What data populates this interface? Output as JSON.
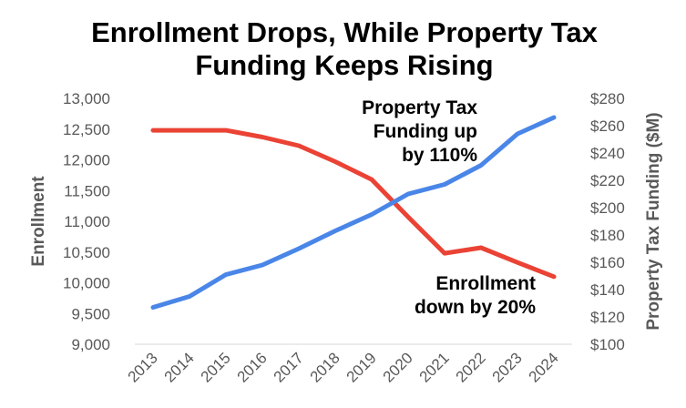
{
  "chart_data": {
    "type": "line",
    "title_lines": [
      "Enrollment Drops, While Property Tax",
      "Funding Keeps Rising"
    ],
    "categories": [
      "2013",
      "2014",
      "2015",
      "2016",
      "2017",
      "2018",
      "2019",
      "2020",
      "2021",
      "2022",
      "2023",
      "2024"
    ],
    "y_left": {
      "label": "Enrollment",
      "range": [
        9000,
        13000
      ],
      "ticks": [
        "9,000",
        "9,500",
        "10,000",
        "10,500",
        "11,000",
        "11,500",
        "12,000",
        "12,500",
        "13,000"
      ]
    },
    "y_right": {
      "label": "Property Tax Funding ($M)",
      "range": [
        100,
        280
      ],
      "ticks": [
        "$100",
        "$120",
        "$140",
        "$160",
        "$180",
        "$200",
        "$220",
        "$240",
        "$260",
        "$280"
      ]
    },
    "series": [
      {
        "name": "Enrollment",
        "axis": "left",
        "color": "#EA4335",
        "values": [
          12480,
          12480,
          12480,
          12370,
          12230,
          11970,
          11680,
          11070,
          10480,
          10570,
          10330,
          10100
        ]
      },
      {
        "name": "Property Tax Funding",
        "axis": "right",
        "color": "#4A86E8",
        "values": [
          127,
          135,
          151,
          158,
          170,
          183,
          195,
          210,
          217,
          231,
          254,
          266
        ]
      }
    ],
    "annotations": {
      "tax": [
        "Property Tax",
        "Funding up",
        "by 110%"
      ],
      "enrollment": [
        "Enrollment",
        "down by 20%"
      ]
    },
    "grid": false,
    "legend": "none"
  }
}
